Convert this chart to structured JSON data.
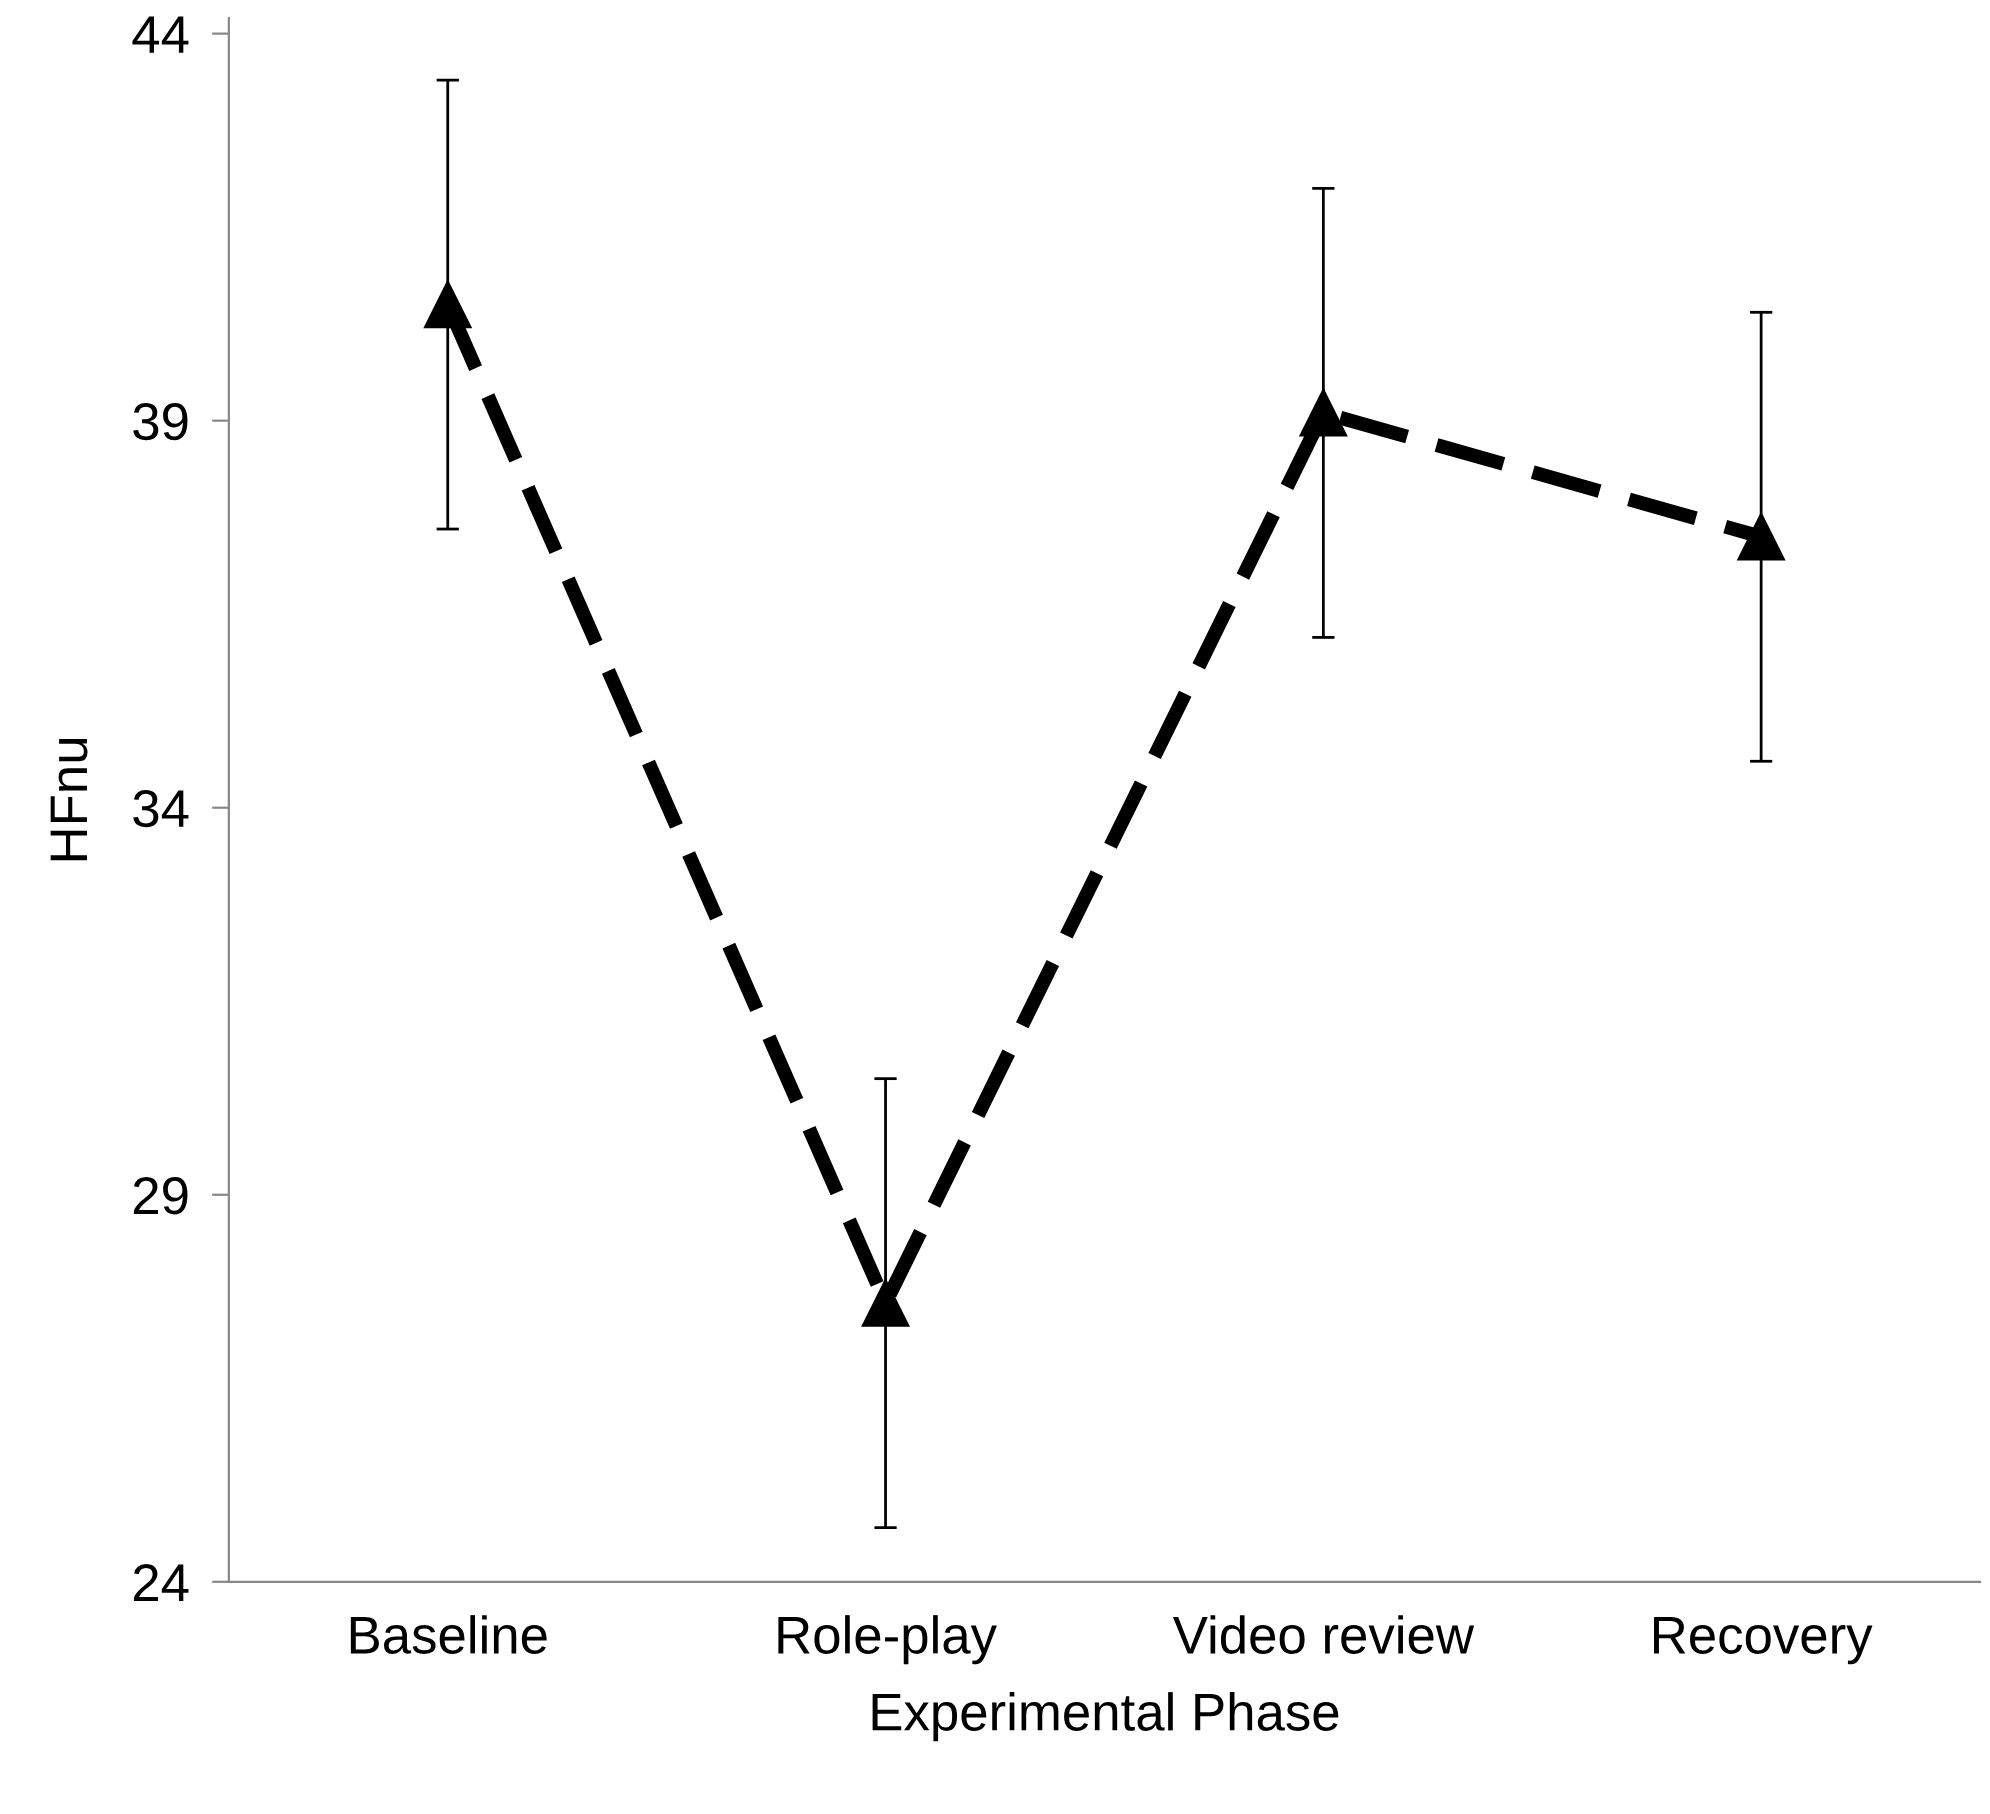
{
  "chart_data": {
    "type": "line",
    "xlabel": "Experimental Phase",
    "ylabel": "HFnu",
    "categories": [
      "Baseline",
      "Role-play",
      "Video review",
      "Recovery"
    ],
    "series": [
      {
        "color": "#000000",
        "values": [
          40.5,
          27.6,
          39.1,
          37.5
        ],
        "errors": [
          2.9,
          2.9,
          2.9,
          2.9
        ]
      }
    ],
    "ylim": [
      24,
      44.2
    ],
    "yticks": [
      24,
      29,
      34,
      39,
      44
    ],
    "marker": "triangle",
    "line_style": "dashed"
  }
}
